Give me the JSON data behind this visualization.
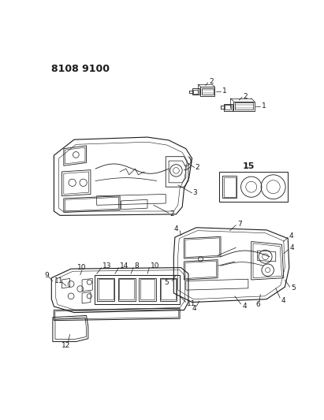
{
  "title": "8108 9100",
  "background_color": "#ffffff",
  "line_color": "#1a1a1a",
  "fig_width": 4.11,
  "fig_height": 5.33,
  "dpi": 100,
  "label_fontsize": 6.5,
  "label_fontsize_bold": 8
}
